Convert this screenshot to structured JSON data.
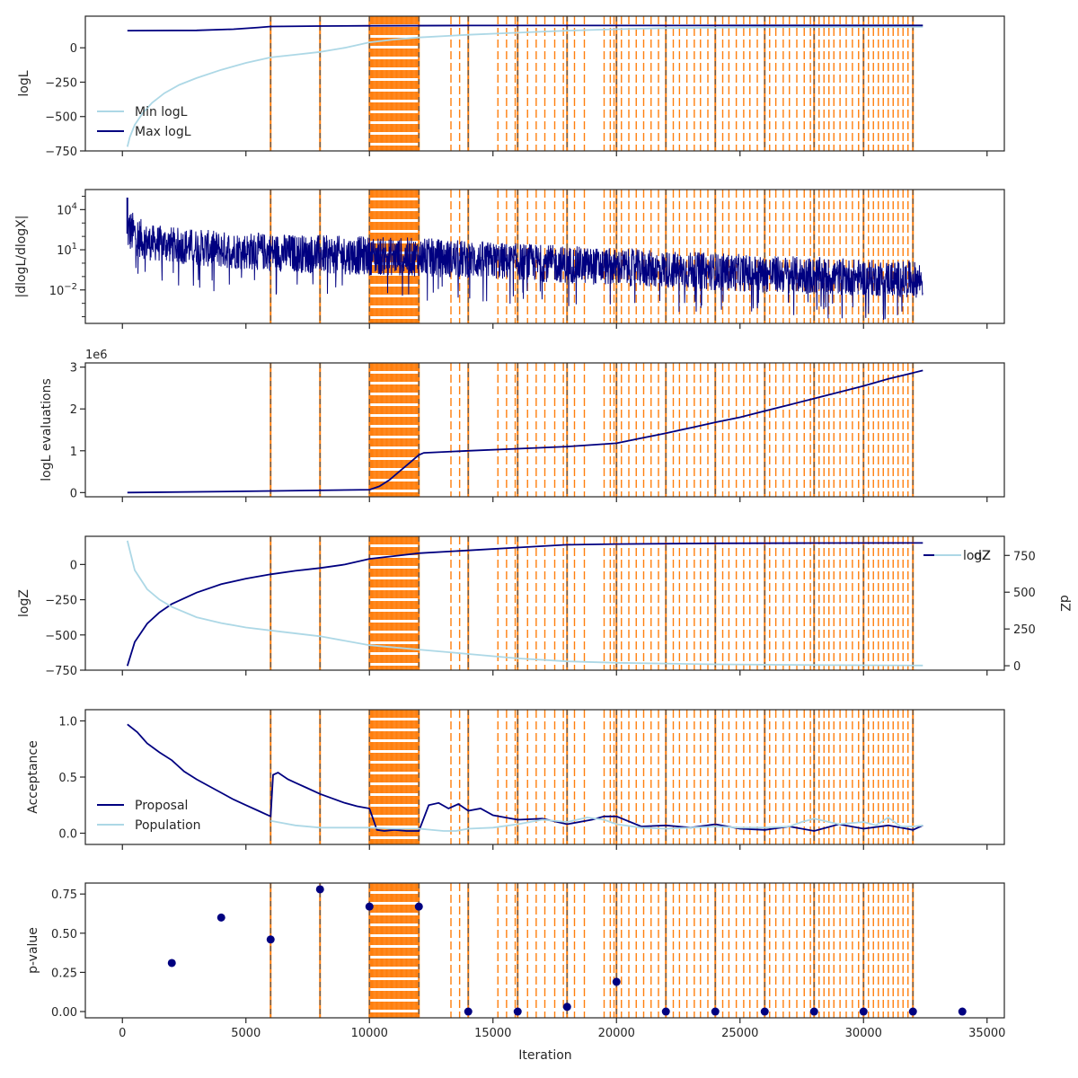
{
  "chart_data": {
    "type": "line",
    "x_label": "Iteration",
    "x_ticks": [
      "0",
      "5000",
      "10000",
      "15000",
      "20000",
      "25000",
      "30000",
      "35000"
    ],
    "xlim": [
      -1500,
      35700
    ],
    "colors": {
      "navy": "#000080",
      "lightblue": "#add8e6",
      "orange": "#ff7f0e",
      "grey_dash": "#555555",
      "frame": "#262626"
    },
    "vertical_markers": {
      "orange_solid_dashed_black": [
        6000,
        8000,
        10000,
        12000,
        14000,
        16000,
        18000,
        20000,
        22000,
        24000,
        26000,
        28000,
        30000,
        32000
      ],
      "dense_band": [
        10000,
        12000
      ],
      "orange_dashed": [
        13300,
        13650,
        15200,
        15550,
        15900,
        16400,
        16750,
        17100,
        17500,
        17850,
        18300,
        18700,
        19500,
        19750,
        19900,
        20200,
        20500,
        20800,
        21100,
        21400,
        21700,
        22300,
        22550,
        22850,
        23150,
        23400,
        23700,
        24300,
        24550,
        24850,
        25150,
        25400,
        25700,
        26200,
        26450,
        26750,
        27000,
        27300,
        27600,
        27850,
        28200,
        28400,
        28600,
        28800,
        29050,
        29300,
        29550,
        29800,
        30200,
        30400,
        30600,
        30800,
        31000,
        31200,
        31400,
        31600,
        31800
      ]
    },
    "panels": [
      {
        "id": "logl",
        "ylabel": "logL",
        "yticks": [
          {
            "value": 0,
            "label": "0"
          },
          {
            "value": -250,
            "label": "−250"
          },
          {
            "value": -500,
            "label": "−500"
          },
          {
            "value": -750,
            "label": "−750"
          }
        ],
        "ylim": [
          -750,
          230
        ],
        "legend": {
          "position": "lower-left",
          "entries": [
            "Min logL",
            "Max logL"
          ]
        },
        "series": [
          {
            "name": "Min logL",
            "color": "lightblue",
            "x": [
              200,
              300,
              500,
              800,
              1200,
              1700,
              2300,
              3000,
              4000,
              5000,
              6000,
              7000,
              8000,
              9000,
              10000,
              11000,
              12000,
              14000,
              16000,
              18000,
              20000,
              22000,
              26000,
              30000,
              32400
            ],
            "y": [
              -720,
              -650,
              -560,
              -480,
              -400,
              -330,
              -270,
              -220,
              -160,
              -110,
              -70,
              -50,
              -30,
              0,
              40,
              60,
              75,
              95,
              110,
              125,
              135,
              143,
              150,
              152,
              153
            ]
          },
          {
            "name": "Max logL",
            "color": "navy",
            "x": [
              200,
              3000,
              4500,
              5500,
              6000,
              8000,
              10000,
              14000,
              20000,
              26000,
              32400
            ],
            "y": [
              125,
              127,
              135,
              148,
              155,
              158,
              160,
              162,
              162,
              163,
              163
            ]
          }
        ]
      },
      {
        "id": "dlogl",
        "ylabel": "|dlogL/dlogX|",
        "scale": "log",
        "yticks": [
          {
            "value": 10000,
            "label": "10^4"
          },
          {
            "value": 10,
            "label": "10^1"
          },
          {
            "value": 0.01,
            "label": "10^-2"
          }
        ],
        "ylim_log10": [
          -4.5,
          5.5
        ],
        "trend": {
          "x": [
            200,
            1000,
            4000,
            8000,
            10000,
            12000,
            16000,
            20000,
            26000,
            32400
          ],
          "upper_log10": [
            4.2,
            2.9,
            2.4,
            2.1,
            2.0,
            1.9,
            1.5,
            1.1,
            0.6,
            0.1
          ],
          "lower_log10": [
            0.8,
            0.2,
            -0.4,
            -0.8,
            -0.9,
            -1.0,
            -1.3,
            -1.7,
            -2.2,
            -2.6
          ]
        }
      },
      {
        "id": "evals",
        "ylabel": "logL evaluations",
        "offset_label": "1e6",
        "yticks": [
          {
            "value": 0,
            "label": "0"
          },
          {
            "value": 1,
            "label": "1"
          },
          {
            "value": 2,
            "label": "2"
          },
          {
            "value": 3,
            "label": "3"
          }
        ],
        "ylim": [
          -0.1,
          3.1
        ],
        "series": [
          {
            "name": "logL evaluations",
            "color": "navy",
            "x": [
              200,
              5000,
              10000,
              10400,
              10800,
              11200,
              11600,
              12000,
              12200,
              14000,
              16000,
              18000,
              20000,
              21000,
              22000,
              23000,
              24000,
              25000,
              26000,
              27000,
              28000,
              29000,
              30000,
              31000,
              32400
            ],
            "y": [
              0.0,
              0.03,
              0.07,
              0.15,
              0.3,
              0.5,
              0.7,
              0.9,
              0.95,
              1.0,
              1.05,
              1.1,
              1.18,
              1.3,
              1.42,
              1.55,
              1.68,
              1.8,
              1.95,
              2.1,
              2.25,
              2.4,
              2.55,
              2.72,
              2.92
            ]
          }
        ]
      },
      {
        "id": "logz",
        "ylabel": "logZ",
        "ylabel_right": "dZ",
        "yticks": [
          {
            "value": 0,
            "label": "0"
          },
          {
            "value": -250,
            "label": "−250"
          },
          {
            "value": -500,
            "label": "−500"
          },
          {
            "value": -750,
            "label": "−750"
          }
        ],
        "yticks_right": [
          {
            "value": 750,
            "label": "750"
          },
          {
            "value": 500,
            "label": "500"
          },
          {
            "value": 250,
            "label": "250"
          },
          {
            "value": 0,
            "label": "0"
          }
        ],
        "ylim": [
          -750,
          200
        ],
        "ylim_right": [
          -30,
          880
        ],
        "legend": {
          "position": "upper-right",
          "entries": [
            "logZ",
            "dZ"
          ]
        },
        "series": [
          {
            "name": "logZ",
            "color": "navy",
            "axis": "left",
            "x": [
              200,
              500,
              1000,
              1500,
              2000,
              3000,
              4000,
              5000,
              6000,
              7000,
              8000,
              9000,
              10000,
              11000,
              12000,
              14000,
              16000,
              18000,
              20000,
              24000,
              28000,
              32400
            ],
            "y": [
              -720,
              -550,
              -420,
              -340,
              -280,
              -200,
              -140,
              -100,
              -70,
              -45,
              -25,
              0,
              40,
              60,
              80,
              100,
              120,
              140,
              145,
              150,
              152,
              153
            ]
          },
          {
            "name": "dZ",
            "color": "lightblue",
            "axis": "right",
            "x": [
              200,
              500,
              1000,
              1500,
              2000,
              3000,
              4000,
              5000,
              6000,
              8000,
              10000,
              12000,
              14000,
              16000,
              18000,
              20000,
              24000,
              28000,
              32400
            ],
            "y": [
              850,
              650,
              520,
              450,
              400,
              330,
              290,
              260,
              240,
              200,
              140,
              110,
              80,
              50,
              30,
              20,
              10,
              5,
              2
            ]
          }
        ]
      },
      {
        "id": "acceptance",
        "ylabel": "Acceptance",
        "yticks": [
          {
            "value": 1.0,
            "label": "1.0"
          },
          {
            "value": 0.5,
            "label": "0.5"
          },
          {
            "value": 0.0,
            "label": "0.0"
          }
        ],
        "ylim": [
          -0.1,
          1.1
        ],
        "legend": {
          "position": "lower-left",
          "entries": [
            "Proposal",
            "Population"
          ]
        },
        "series": [
          {
            "name": "Proposal",
            "color": "navy",
            "x": [
              200,
              600,
              1000,
              1500,
              2000,
              2500,
              3000,
              3500,
              4000,
              4500,
              5000,
              5500,
              5800,
              6000,
              6100,
              6300,
              6700,
              7000,
              7500,
              8000,
              8500,
              9000,
              9500,
              10000,
              10300,
              10600,
              11000,
              11500,
              12000,
              12400,
              12800,
              13200,
              13600,
              14000,
              14500,
              15000,
              15500,
              16000,
              17000,
              18000,
              19000,
              19500,
              20000,
              21000,
              22000,
              23000,
              24000,
              25000,
              26000,
              27000,
              28000,
              29000,
              30000,
              31000,
              31500,
              32000,
              32400
            ],
            "y": [
              0.97,
              0.9,
              0.8,
              0.72,
              0.65,
              0.55,
              0.48,
              0.42,
              0.36,
              0.3,
              0.25,
              0.2,
              0.17,
              0.15,
              0.52,
              0.54,
              0.48,
              0.45,
              0.4,
              0.35,
              0.31,
              0.27,
              0.24,
              0.22,
              0.03,
              0.02,
              0.03,
              0.02,
              0.02,
              0.25,
              0.27,
              0.22,
              0.26,
              0.2,
              0.22,
              0.16,
              0.14,
              0.12,
              0.13,
              0.08,
              0.12,
              0.15,
              0.15,
              0.06,
              0.07,
              0.05,
              0.08,
              0.04,
              0.03,
              0.06,
              0.02,
              0.08,
              0.04,
              0.07,
              0.05,
              0.03,
              0.07
            ]
          },
          {
            "name": "Population",
            "color": "lightblue",
            "x": [
              6000,
              6500,
              7000,
              8000,
              9000,
              10000,
              11000,
              12000,
              13000,
              13500,
              14000,
              15000,
              16000,
              17000,
              18000,
              18800,
              19500,
              20000,
              21000,
              22000,
              23000,
              24000,
              25000,
              26000,
              27000,
              27500,
              28000,
              29000,
              30000,
              30500,
              31000,
              31500,
              32000,
              32400
            ],
            "y": [
              0.11,
              0.09,
              0.07,
              0.05,
              0.05,
              0.05,
              0.04,
              0.04,
              0.02,
              0.02,
              0.04,
              0.05,
              0.08,
              0.12,
              0.1,
              0.14,
              0.12,
              0.08,
              0.05,
              0.04,
              0.05,
              0.06,
              0.05,
              0.05,
              0.06,
              0.1,
              0.13,
              0.08,
              0.1,
              0.07,
              0.14,
              0.06,
              0.06,
              0.07
            ]
          }
        ]
      },
      {
        "id": "pvalue",
        "ylabel": "p-value",
        "yticks": [
          {
            "value": 0.75,
            "label": "0.75"
          },
          {
            "value": 0.5,
            "label": "0.50"
          },
          {
            "value": 0.25,
            "label": "0.25"
          },
          {
            "value": 0.0,
            "label": "0.00"
          }
        ],
        "ylim": [
          -0.04,
          0.82
        ],
        "series": [
          {
            "name": "p-value",
            "color": "navy",
            "kind": "scatter",
            "x": [
              2000,
              4000,
              6000,
              8000,
              10000,
              12000,
              14000,
              16000,
              18000,
              20000,
              22000,
              24000,
              26000,
              28000,
              30000,
              32000,
              34000
            ],
            "y": [
              0.31,
              0.6,
              0.46,
              0.78,
              0.67,
              0.67,
              0.0,
              0.0,
              0.03,
              0.19,
              0.0,
              0.0,
              0.0,
              0.0,
              0.0,
              0.0,
              0.0
            ]
          }
        ]
      }
    ]
  }
}
